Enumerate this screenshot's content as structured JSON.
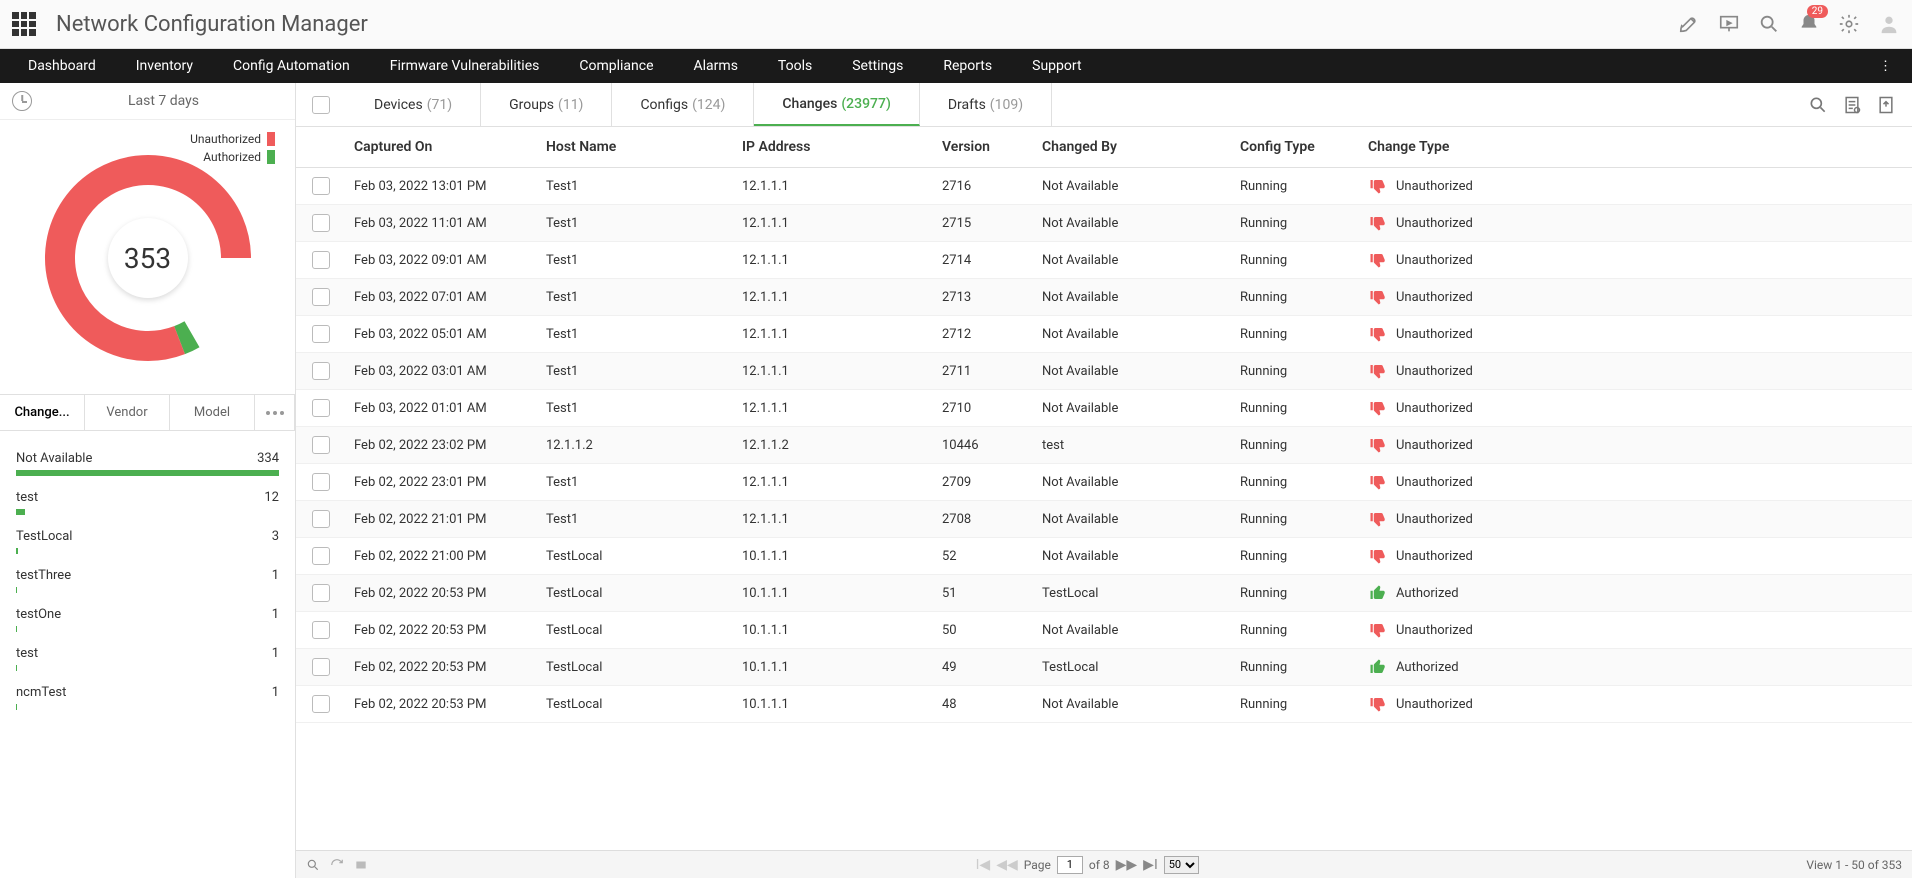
{
  "app": {
    "title": "Network Configuration Manager",
    "notification_count": "29"
  },
  "nav": {
    "items": [
      "Dashboard",
      "Inventory",
      "Config Automation",
      "Firmware Vulnerabilities",
      "Compliance",
      "Alarms",
      "Tools",
      "Settings",
      "Reports",
      "Support"
    ]
  },
  "sidebar": {
    "period_label": "Last 7 days",
    "donut": {
      "legend": [
        {
          "label": "Unauthorized",
          "color": "#ef5b5b"
        },
        {
          "label": "Authorized",
          "color": "#4caf50"
        }
      ],
      "center_value": "353",
      "unauthorized_pct": 97,
      "authorized_pct": 3,
      "colors": {
        "unauthorized": "#ef5b5b",
        "authorized": "#4caf50",
        "track": "#ffffff"
      },
      "stroke_width": 30,
      "radius": 88,
      "start_angle_deg": 150,
      "sweep_deg": 300
    },
    "tabs": {
      "items": [
        "Change...",
        "Vendor",
        "Model"
      ],
      "active": 0
    },
    "bars": {
      "max": 334,
      "fill_color": "#4caf50",
      "rows": [
        {
          "label": "Not Available",
          "value": 334
        },
        {
          "label": "test",
          "value": 12
        },
        {
          "label": "TestLocal",
          "value": 3
        },
        {
          "label": "testThree",
          "value": 1
        },
        {
          "label": "testOne",
          "value": 1
        },
        {
          "label": "test",
          "value": 1
        },
        {
          "label": "ncmTest",
          "value": 1
        }
      ]
    }
  },
  "content_tabs": {
    "items": [
      {
        "label": "Devices",
        "count": "(71)"
      },
      {
        "label": "Groups",
        "count": "(11)"
      },
      {
        "label": "Configs",
        "count": "(124)"
      },
      {
        "label": "Changes",
        "count": "(23977)"
      },
      {
        "label": "Drafts",
        "count": "(109)"
      }
    ],
    "active": 3
  },
  "table": {
    "headers": [
      "Captured On",
      "Host Name",
      "IP Address",
      "Version",
      "Changed By",
      "Config Type",
      "Change Type"
    ],
    "change_type_colors": {
      "Unauthorized": "#ef5b5b",
      "Authorized": "#4caf50"
    },
    "rows": [
      {
        "captured": "Feb 03, 2022 13:01 PM",
        "host": "Test1",
        "ip": "12.1.1.1",
        "version": "2716",
        "changed_by": "Not Available",
        "config_type": "Running",
        "change_type": "Unauthorized"
      },
      {
        "captured": "Feb 03, 2022 11:01 AM",
        "host": "Test1",
        "ip": "12.1.1.1",
        "version": "2715",
        "changed_by": "Not Available",
        "config_type": "Running",
        "change_type": "Unauthorized"
      },
      {
        "captured": "Feb 03, 2022 09:01 AM",
        "host": "Test1",
        "ip": "12.1.1.1",
        "version": "2714",
        "changed_by": "Not Available",
        "config_type": "Running",
        "change_type": "Unauthorized"
      },
      {
        "captured": "Feb 03, 2022 07:01 AM",
        "host": "Test1",
        "ip": "12.1.1.1",
        "version": "2713",
        "changed_by": "Not Available",
        "config_type": "Running",
        "change_type": "Unauthorized"
      },
      {
        "captured": "Feb 03, 2022 05:01 AM",
        "host": "Test1",
        "ip": "12.1.1.1",
        "version": "2712",
        "changed_by": "Not Available",
        "config_type": "Running",
        "change_type": "Unauthorized"
      },
      {
        "captured": "Feb 03, 2022 03:01 AM",
        "host": "Test1",
        "ip": "12.1.1.1",
        "version": "2711",
        "changed_by": "Not Available",
        "config_type": "Running",
        "change_type": "Unauthorized"
      },
      {
        "captured": "Feb 03, 2022 01:01 AM",
        "host": "Test1",
        "ip": "12.1.1.1",
        "version": "2710",
        "changed_by": "Not Available",
        "config_type": "Running",
        "change_type": "Unauthorized"
      },
      {
        "captured": "Feb 02, 2022 23:02 PM",
        "host": "12.1.1.2",
        "ip": "12.1.1.2",
        "version": "10446",
        "changed_by": "test",
        "config_type": "Running",
        "change_type": "Unauthorized"
      },
      {
        "captured": "Feb 02, 2022 23:01 PM",
        "host": "Test1",
        "ip": "12.1.1.1",
        "version": "2709",
        "changed_by": "Not Available",
        "config_type": "Running",
        "change_type": "Unauthorized"
      },
      {
        "captured": "Feb 02, 2022 21:01 PM",
        "host": "Test1",
        "ip": "12.1.1.1",
        "version": "2708",
        "changed_by": "Not Available",
        "config_type": "Running",
        "change_type": "Unauthorized"
      },
      {
        "captured": "Feb 02, 2022 21:00 PM",
        "host": "TestLocal",
        "ip": "10.1.1.1",
        "version": "52",
        "changed_by": "Not Available",
        "config_type": "Running",
        "change_type": "Unauthorized"
      },
      {
        "captured": "Feb 02, 2022 20:53 PM",
        "host": "TestLocal",
        "ip": "10.1.1.1",
        "version": "51",
        "changed_by": "TestLocal",
        "config_type": "Running",
        "change_type": "Authorized"
      },
      {
        "captured": "Feb 02, 2022 20:53 PM",
        "host": "TestLocal",
        "ip": "10.1.1.1",
        "version": "50",
        "changed_by": "Not Available",
        "config_type": "Running",
        "change_type": "Unauthorized"
      },
      {
        "captured": "Feb 02, 2022 20:53 PM",
        "host": "TestLocal",
        "ip": "10.1.1.1",
        "version": "49",
        "changed_by": "TestLocal",
        "config_type": "Running",
        "change_type": "Authorized"
      },
      {
        "captured": "Feb 02, 2022 20:53 PM",
        "host": "TestLocal",
        "ip": "10.1.1.1",
        "version": "48",
        "changed_by": "Not Available",
        "config_type": "Running",
        "change_type": "Unauthorized"
      }
    ]
  },
  "pager": {
    "page_label": "Page",
    "page_value": "1",
    "of_label": "of 8",
    "page_size": "50",
    "summary": "View 1 - 50 of 353"
  }
}
